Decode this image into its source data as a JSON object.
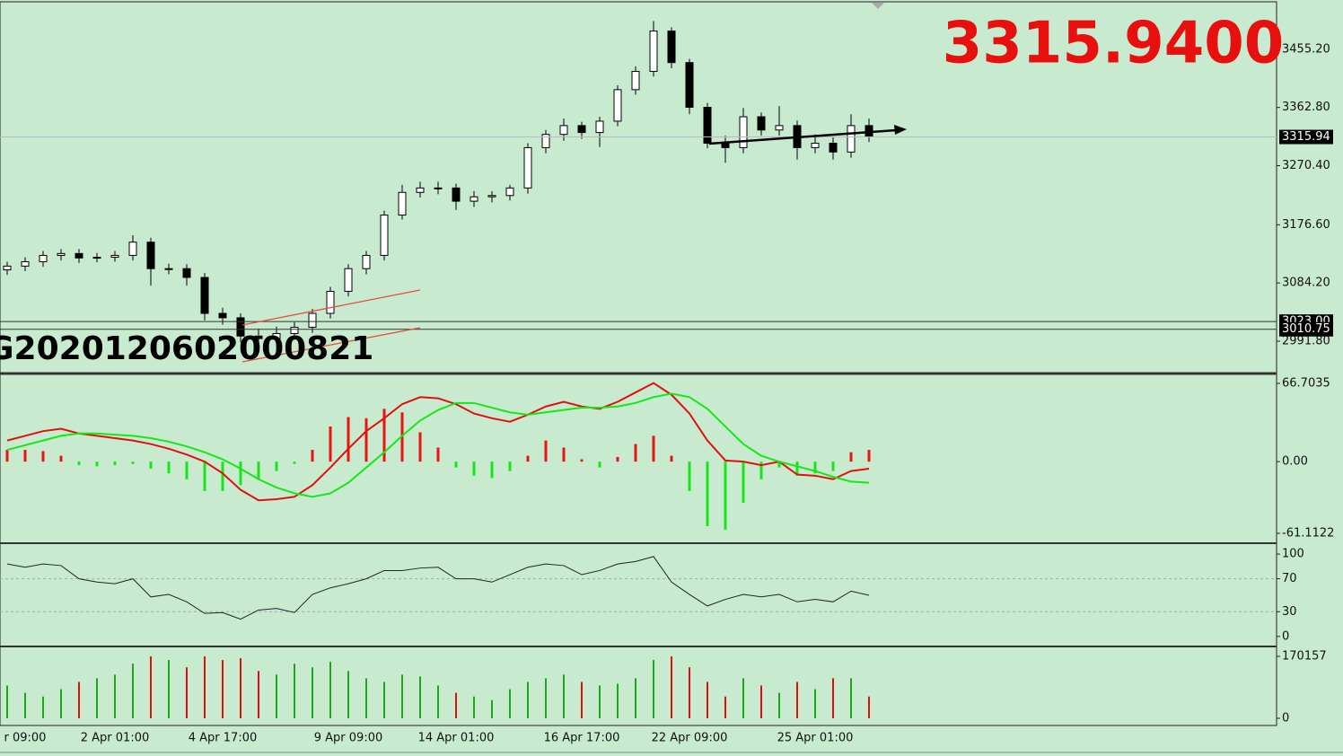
{
  "price_display": "3315.9400",
  "watermark": "G2020120602000821",
  "chart_data": [
    {
      "type": "candlestick",
      "open": [
        3105,
        3111,
        3118,
        3128,
        3131,
        3124,
        3125,
        3128,
        3149,
        3107,
        3107,
        3093,
        3036,
        3029,
        3000,
        2996,
        3004,
        3014,
        3036,
        3071,
        3107,
        3128,
        3192,
        3228,
        3235,
        3235,
        3214,
        3221,
        3223,
        3235,
        3299,
        3320,
        3334,
        3323,
        3341,
        3391,
        3420,
        3484,
        3434,
        3363,
        3306,
        3299,
        3348,
        3327,
        3334,
        3299,
        3306,
        3292,
        3334
      ],
      "high": [
        3118,
        3125,
        3135,
        3138,
        3138,
        3132,
        3135,
        3160,
        3156,
        3115,
        3114,
        3100,
        3045,
        3036,
        3012,
        3015,
        3022,
        3043,
        3078,
        3114,
        3135,
        3199,
        3240,
        3245,
        3245,
        3242,
        3230,
        3230,
        3240,
        3306,
        3327,
        3345,
        3340,
        3348,
        3398,
        3428,
        3500,
        3490,
        3440,
        3370,
        3318,
        3362,
        3355,
        3365,
        3342,
        3320,
        3315,
        3352,
        3345
      ],
      "low": [
        3097,
        3103,
        3110,
        3120,
        3116,
        3117,
        3118,
        3120,
        3080,
        3098,
        3080,
        3025,
        3018,
        2990,
        2982,
        2988,
        2996,
        3005,
        3028,
        3063,
        3098,
        3120,
        3185,
        3220,
        3225,
        3200,
        3205,
        3212,
        3215,
        3226,
        3290,
        3310,
        3313,
        3300,
        3333,
        3383,
        3412,
        3425,
        3352,
        3298,
        3275,
        3290,
        3318,
        3318,
        3280,
        3290,
        3280,
        3283,
        3308
      ],
      "close": [
        3111,
        3118,
        3128,
        3131,
        3124,
        3125,
        3128,
        3149,
        3107,
        3107,
        3093,
        3036,
        3029,
        3000,
        2996,
        3004,
        3014,
        3036,
        3071,
        3107,
        3128,
        3192,
        3228,
        3235,
        3235,
        3214,
        3221,
        3223,
        3235,
        3299,
        3320,
        3334,
        3323,
        3341,
        3391,
        3420,
        3484,
        3434,
        3363,
        3306,
        3299,
        3348,
        3327,
        3334,
        3299,
        3306,
        3292,
        3334,
        3316
      ],
      "ylim": [
        2942,
        3529
      ],
      "yticks": [
        {
          "value": 2991.8,
          "label": "2991.80"
        },
        {
          "value": 3084.2,
          "label": "3084.20"
        },
        {
          "value": 3176.6,
          "label": "3176.60"
        },
        {
          "value": 3270.4,
          "label": "3270.40"
        },
        {
          "value": 3362.8,
          "label": "3362.80"
        },
        {
          "value": 3455.2,
          "label": "3455.20"
        }
      ],
      "levels": [
        {
          "value": 3023,
          "label": "3023.00"
        },
        {
          "value": 3010.75,
          "label": "3010.75"
        }
      ],
      "current_price": {
        "value": 3315.94,
        "label": "3315.94"
      }
    },
    {
      "type": "macd",
      "histogram": [
        10,
        10,
        9,
        5,
        -3,
        -4,
        -3,
        -2,
        -6,
        -10,
        -15,
        -25,
        -25,
        -20,
        -15,
        -8,
        -2,
        10,
        30,
        38,
        37,
        45,
        42,
        25,
        12,
        -5,
        -12,
        -14,
        -8,
        5,
        18,
        12,
        2,
        -5,
        4,
        15,
        22,
        5,
        -25,
        -55,
        -58,
        -35,
        -15,
        -5,
        -12,
        -10,
        -8,
        8,
        10
      ],
      "up_color": "#e8140f",
      "down_color": "#19e619",
      "series": [
        {
          "color": "#e01010",
          "values": [
            18,
            22,
            26,
            28,
            24,
            22,
            20,
            18,
            15,
            11,
            6,
            0,
            -10,
            -24,
            -33,
            -32,
            -30,
            -20,
            -5,
            11,
            26,
            37,
            49,
            55,
            54,
            49,
            41,
            37,
            34,
            40,
            47,
            51,
            47,
            45,
            51,
            59,
            67,
            57,
            41,
            18,
            1,
            0,
            -3,
            0,
            -11,
            -12,
            -15,
            -8,
            -6
          ]
        },
        {
          "color": "#19e619",
          "values": [
            10,
            14,
            18,
            22,
            24,
            24,
            23,
            22,
            20,
            17,
            13,
            8,
            2,
            -6,
            -15,
            -22,
            -27,
            -30,
            -27,
            -18,
            -5,
            8,
            22,
            35,
            44,
            50,
            50,
            46,
            42,
            40,
            42,
            44,
            46,
            46,
            47,
            50,
            55,
            58,
            55,
            45,
            30,
            15,
            5,
            0,
            -4,
            -8,
            -13,
            -17,
            -18
          ]
        }
      ],
      "ylim": [
        -68.77,
        74.36
      ],
      "yticks": [
        -61.1122,
        {
          "value": 0,
          "label": "0.00"
        },
        66.7035
      ]
    },
    {
      "type": "line",
      "color": "#222222",
      "values": [
        88,
        84,
        88,
        86,
        70,
        66,
        64,
        70,
        48,
        51,
        42,
        28,
        29,
        21,
        32,
        34,
        29,
        51,
        59,
        64,
        70,
        80,
        80,
        83,
        84,
        70,
        70,
        66,
        75,
        84,
        88,
        86,
        75,
        80,
        88,
        91,
        97,
        66,
        51,
        37,
        45,
        51,
        48,
        51,
        42,
        45,
        42,
        55,
        50
      ],
      "ylim": [
        -10,
        111
      ],
      "yticks": [
        0,
        30,
        70,
        100
      ],
      "dashed_levels": [
        30,
        70
      ]
    },
    {
      "type": "bar",
      "up_color": "#1aa81a",
      "down_color": "#e01010",
      "values": [
        90000,
        70000,
        60000,
        80000,
        100000,
        110000,
        120000,
        150000,
        170000,
        160000,
        140000,
        170000,
        160000,
        165000,
        130000,
        120000,
        150000,
        140000,
        155000,
        130000,
        110000,
        100000,
        120000,
        115000,
        90000,
        70000,
        60000,
        50000,
        80000,
        100000,
        110000,
        120000,
        100000,
        90000,
        95000,
        110000,
        160000,
        170000,
        140000,
        100000,
        60000,
        110000,
        90000,
        70000,
        100000,
        80000,
        110000,
        110000,
        60000
      ],
      "categories": [
        null,
        "r 09:00",
        null,
        null,
        null,
        null,
        "2 Apr 01:00",
        null,
        null,
        null,
        null,
        null,
        "4 Apr 17:00",
        null,
        null,
        null,
        null,
        null,
        null,
        "9 Apr 09:00",
        null,
        null,
        null,
        null,
        null,
        "14 Apr 01:00",
        null,
        null,
        null,
        null,
        null,
        null,
        "16 Apr 17:00",
        null,
        null,
        null,
        null,
        null,
        "22 Apr 09:00",
        null,
        null,
        null,
        null,
        null,
        null,
        "25 Apr 01:00",
        null,
        null,
        null
      ],
      "ylim": [
        -19700,
        192350
      ],
      "yticks": [
        0,
        170157
      ]
    }
  ]
}
